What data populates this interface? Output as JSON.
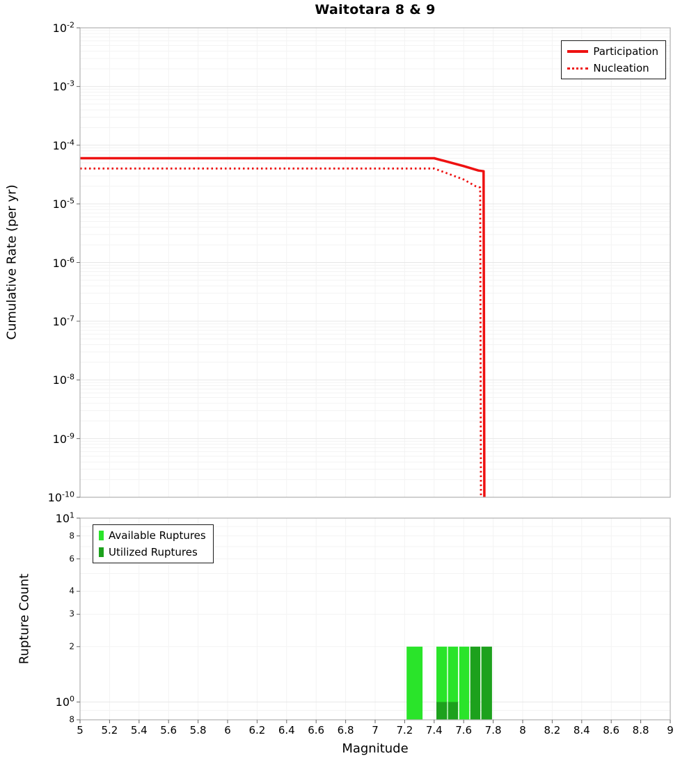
{
  "title": "Waitotara 8 & 9",
  "colors": {
    "line_red": "#ee1111",
    "available": "#2ae42a",
    "utilized": "#1da11d",
    "axis_border": "#b0b0b0",
    "grid_major": "#e7e7e7",
    "grid_minor": "#f3f3f3",
    "tick": "#666666"
  },
  "chart_data": [
    {
      "id": "cumulative-rate-plot",
      "type": "line",
      "title": "Waitotara 8 & 9",
      "xlabel": "",
      "ylabel": "Cumulative Rate (per yr)",
      "xlim": [
        5,
        9
      ],
      "ylim": [
        1e-10,
        0.01
      ],
      "y_scale": "log",
      "x_tick_step": 0.2,
      "grid": true,
      "legend_position": "top-right",
      "y_ticks": [
        {
          "value": 0.01,
          "label": "10^-2"
        },
        {
          "value": 0.001,
          "label": "10^-3"
        },
        {
          "value": 0.0001,
          "label": "10^-4"
        },
        {
          "value": 1e-05,
          "label": "10^-5"
        },
        {
          "value": 1e-06,
          "label": "10^-6"
        },
        {
          "value": 1e-07,
          "label": "10^-7"
        },
        {
          "value": 1e-08,
          "label": "10^-8"
        },
        {
          "value": 1e-09,
          "label": "10^-9"
        },
        {
          "value": 1e-10,
          "label": "10^-10"
        }
      ],
      "legend": [
        {
          "label": "Participation",
          "style": "solid"
        },
        {
          "label": "Nucleation",
          "style": "dotted"
        }
      ],
      "series": [
        {
          "name": "Participation",
          "style": "solid",
          "color": "#ee1111",
          "points": [
            [
              5,
              6e-05
            ],
            [
              7.4,
              6e-05
            ],
            [
              7.6,
              4.4e-05
            ],
            [
              7.7,
              3.7e-05
            ],
            [
              7.735,
              3.6e-05
            ],
            [
              7.74,
              1e-10
            ]
          ]
        },
        {
          "name": "Nucleation",
          "style": "dotted",
          "color": "#ee1111",
          "points": [
            [
              5,
              4e-05
            ],
            [
              7.4,
              4e-05
            ],
            [
              7.6,
              2.6e-05
            ],
            [
              7.68,
              2e-05
            ],
            [
              7.712,
              1.9e-05
            ],
            [
              7.717,
              1e-10
            ]
          ]
        }
      ]
    },
    {
      "id": "rupture-count-plot",
      "type": "bar",
      "xlabel": "Magnitude",
      "ylabel": "Rupture Count",
      "xlim": [
        5,
        9
      ],
      "ylim": [
        0.8,
        10
      ],
      "y_scale": "log",
      "grid": true,
      "legend_position": "top-left",
      "x_ticks": [
        "5",
        "5.2",
        "5.4",
        "5.6",
        "5.8",
        "6",
        "6.2",
        "6.4",
        "6.6",
        "6.8",
        "7",
        "7.2",
        "7.4",
        "7.6",
        "7.8",
        "8",
        "8.2",
        "8.4",
        "8.6",
        "8.8",
        "9"
      ],
      "y_ticks": [
        {
          "value": 10,
          "label": "10^1",
          "major": true
        },
        {
          "value": 8,
          "label": "8",
          "major": false
        },
        {
          "value": 6,
          "label": "6",
          "major": false
        },
        {
          "value": 4,
          "label": "4",
          "major": false
        },
        {
          "value": 3,
          "label": "3",
          "major": false
        },
        {
          "value": 2,
          "label": "2",
          "major": false
        },
        {
          "value": 1,
          "label": "10^0",
          "major": true
        },
        {
          "value": 0.8,
          "label": "8",
          "major": false
        }
      ],
      "legend": [
        {
          "label": "Available Ruptures",
          "type": "available"
        },
        {
          "label": "Utilized Ruptures",
          "type": "utilized"
        }
      ],
      "bars": [
        {
          "x0": 7.213,
          "x1": 7.321,
          "count": 2,
          "type": "available"
        },
        {
          "x0": 7.415,
          "x1": 7.487,
          "count": 2,
          "type": "available"
        },
        {
          "x0": 7.494,
          "x1": 7.562,
          "count": 2,
          "type": "available"
        },
        {
          "x0": 7.57,
          "x1": 7.638,
          "count": 2,
          "type": "available"
        },
        {
          "x0": 7.415,
          "x1": 7.487,
          "count": 1,
          "type": "utilized"
        },
        {
          "x0": 7.494,
          "x1": 7.562,
          "count": 1,
          "type": "utilized"
        },
        {
          "x0": 7.645,
          "x1": 7.713,
          "count": 2,
          "type": "utilized"
        },
        {
          "x0": 7.72,
          "x1": 7.792,
          "count": 2,
          "type": "utilized"
        }
      ]
    }
  ]
}
